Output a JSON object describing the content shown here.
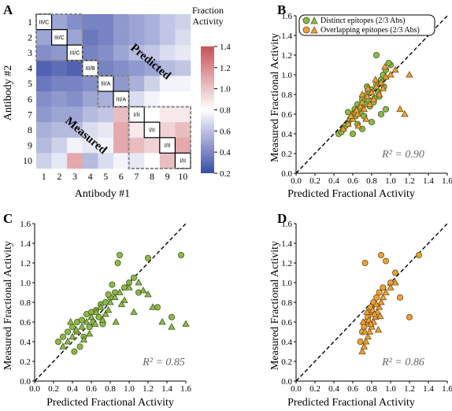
{
  "colors": {
    "green_fill": "#8fb84a",
    "green_stroke": "#3d5a1a",
    "orange_fill": "#e8a23a",
    "orange_stroke": "#7a4a10",
    "cb_low": "#3a4aa8",
    "cb_mid": "#ffffff",
    "cb_high": "#c8505a"
  },
  "panels": {
    "A": {
      "letter": "A",
      "xlabel": "Antibody #1",
      "ylabel": "Antibody #2",
      "ticks": [
        "1",
        "2",
        "3",
        "4",
        "5",
        "6",
        "7",
        "8",
        "9",
        "10"
      ],
      "colorbar_title_1": "Fraction",
      "colorbar_title_2": "Activity",
      "colorbar_ticks": [
        "1.4",
        "1.2",
        "1.0",
        "0.8",
        "0.6",
        "0.4",
        "0.2"
      ],
      "predicted_label": "Predicted",
      "measured_label": "Measured",
      "cluster_labels": [
        "III/C",
        "III/C",
        "III/C",
        "III/B",
        "III/A",
        "III/A",
        "I/II",
        "I/II",
        "I/II",
        "I/II"
      ]
    },
    "B": {
      "letter": "B",
      "xlabel": "Predicted Fractional Activity",
      "ylabel": "Measured Fractional Activity",
      "r2_text": "R² = 0.90",
      "legend": [
        "Distinct epitopes (2/3 Abs)",
        "Overlapping epitopes (2/3 Abs)"
      ]
    },
    "C": {
      "letter": "C",
      "xlabel": "Predicted Fractional Activity",
      "ylabel": "Measured Fractional Activity",
      "r2_text": "R² = 0.85"
    },
    "D": {
      "letter": "D",
      "xlabel": "Predicted Fractional Activity",
      "ylabel": "Measured Fractional Activity",
      "r2_text": "R² = 0.86"
    },
    "axis_ticks": [
      "0.0",
      "0.2",
      "0.4",
      "0.6",
      "0.8",
      "1.0",
      "1.2",
      "1.4",
      "1.6"
    ]
  },
  "chart_data": [
    {
      "type": "heatmap",
      "panel": "A",
      "xlabel": "Antibody #1",
      "ylabel": "Antibody #2",
      "colorbar_range": [
        0.2,
        1.4
      ],
      "values": [
        [
          1.0,
          0.6,
          0.5,
          0.45,
          0.45,
          0.55,
          0.6,
          0.65,
          0.75,
          0.8
        ],
        [
          0.6,
          1.0,
          0.6,
          0.4,
          0.45,
          0.55,
          0.6,
          0.65,
          0.75,
          0.85
        ],
        [
          0.5,
          0.55,
          1.0,
          0.45,
          0.5,
          0.6,
          0.7,
          0.75,
          0.85,
          0.9
        ],
        [
          0.3,
          0.35,
          0.3,
          1.0,
          0.45,
          0.5,
          0.55,
          0.6,
          0.7,
          0.75
        ],
        [
          0.4,
          0.45,
          0.45,
          0.5,
          1.0,
          0.55,
          0.65,
          0.8,
          0.95,
          0.95
        ],
        [
          0.5,
          0.55,
          0.5,
          0.6,
          0.65,
          1.0,
          0.85,
          0.95,
          1.0,
          1.0
        ],
        [
          0.55,
          0.6,
          0.6,
          0.7,
          0.75,
          1.15,
          1.0,
          1.0,
          1.05,
          1.05
        ],
        [
          0.65,
          0.7,
          0.7,
          0.85,
          0.9,
          1.2,
          1.05,
          1.0,
          1.1,
          1.15
        ],
        [
          0.7,
          0.8,
          0.95,
          0.9,
          0.95,
          1.2,
          1.15,
          1.1,
          1.0,
          1.2
        ],
        [
          0.8,
          0.9,
          1.2,
          0.7,
          0.85,
          0.95,
          0.9,
          1.0,
          1.15,
          1.0
        ]
      ]
    },
    {
      "type": "scatter",
      "panel": "B",
      "xlim": [
        0,
        1.6
      ],
      "ylim": [
        0,
        1.6
      ],
      "series": [
        {
          "name": "Distinct epitopes (2/3 Abs)",
          "marker": "circle",
          "color": "#8fb84a",
          "x": [
            0.45,
            0.5,
            0.55,
            0.58,
            0.6,
            0.62,
            0.65,
            0.68,
            0.7,
            0.72,
            0.75,
            0.78,
            0.8,
            0.82,
            0.85,
            0.88,
            0.9,
            0.92,
            0.95,
            1.0,
            0.48,
            0.52,
            0.57,
            0.63,
            0.67,
            0.73,
            0.77,
            0.83,
            0.87,
            0.93,
            0.98,
            0.6,
            0.7,
            0.8,
            0.9,
            0.55,
            0.65,
            0.75,
            0.85,
            0.95
          ],
          "y": [
            0.4,
            0.45,
            0.5,
            0.55,
            0.6,
            0.65,
            0.7,
            0.62,
            0.75,
            0.58,
            0.8,
            0.68,
            0.85,
            0.72,
            0.9,
            0.78,
            0.95,
            1.0,
            1.05,
            1.1,
            0.42,
            0.48,
            0.55,
            0.58,
            0.66,
            0.7,
            0.74,
            0.76,
            0.82,
            0.88,
            1.12,
            0.4,
            0.45,
            0.52,
            0.6,
            0.62,
            0.5,
            0.88,
            1.2,
            0.65
          ]
        },
        {
          "name": "Overlapping epitopes (2/3 Abs)",
          "marker": "triangle",
          "color": "#e8a23a",
          "x": [
            0.5,
            0.55,
            0.6,
            0.62,
            0.65,
            0.68,
            0.7,
            0.72,
            0.75,
            0.78,
            0.8,
            0.82,
            0.85,
            0.88,
            0.9,
            0.92,
            0.95,
            1.0,
            1.05,
            1.1,
            1.15,
            1.2,
            0.58,
            0.64,
            0.7,
            0.76,
            0.84,
            0.94,
            0.66,
            0.74
          ],
          "y": [
            0.45,
            0.5,
            0.55,
            0.62,
            0.6,
            0.68,
            0.72,
            0.65,
            0.78,
            0.7,
            0.82,
            0.75,
            0.88,
            0.8,
            0.92,
            0.86,
            0.98,
            1.0,
            1.05,
            0.65,
            0.6,
            1.0,
            0.58,
            0.64,
            0.8,
            0.86,
            0.95,
            1.08,
            0.48,
            0.55
          ]
        }
      ]
    },
    {
      "type": "scatter",
      "panel": "C",
      "xlim": [
        0,
        1.6
      ],
      "ylim": [
        0,
        1.6
      ],
      "series": [
        {
          "name": "Distinct epitopes",
          "marker": "circle",
          "color": "#8fb84a",
          "x": [
            0.25,
            0.3,
            0.35,
            0.4,
            0.45,
            0.5,
            0.55,
            0.6,
            0.65,
            0.7,
            0.75,
            0.8,
            0.85,
            0.9,
            0.95,
            1.0,
            1.05,
            1.1,
            1.2,
            1.3,
            1.45,
            1.55,
            0.42,
            0.48,
            0.52,
            0.58,
            0.62,
            0.68,
            0.72,
            0.78,
            0.82,
            0.88
          ],
          "y": [
            0.4,
            0.45,
            0.5,
            0.55,
            0.6,
            0.62,
            0.68,
            0.7,
            0.72,
            0.78,
            0.8,
            0.85,
            0.9,
            1.28,
            0.95,
            1.0,
            1.05,
            0.9,
            1.25,
            0.75,
            0.65,
            1.28,
            0.3,
            0.35,
            0.45,
            0.55,
            0.6,
            0.65,
            0.58,
            0.88,
            0.98,
            1.2
          ]
        },
        {
          "name": "Overlapping epitopes",
          "marker": "triangle",
          "color": "#8fb84a",
          "x": [
            0.3,
            0.35,
            0.4,
            0.45,
            0.5,
            0.55,
            0.6,
            0.65,
            0.7,
            0.75,
            0.8,
            0.85,
            0.9,
            0.95,
            1.0,
            1.05,
            1.1,
            1.15,
            1.2,
            1.25,
            1.35,
            1.45,
            1.6,
            0.38,
            0.44,
            0.52,
            0.58,
            0.64,
            0.72,
            0.78,
            0.86,
            0.92
          ],
          "y": [
            0.35,
            0.4,
            0.45,
            0.5,
            0.55,
            0.6,
            0.65,
            0.7,
            0.75,
            0.68,
            0.8,
            0.85,
            0.9,
            0.82,
            0.95,
            0.7,
            1.0,
            0.92,
            0.88,
            0.75,
            0.6,
            0.55,
            0.58,
            0.6,
            0.52,
            0.42,
            0.48,
            0.58,
            0.62,
            0.72,
            0.6,
            0.78
          ]
        }
      ]
    },
    {
      "type": "scatter",
      "panel": "D",
      "xlim": [
        0,
        1.6
      ],
      "ylim": [
        0,
        1.6
      ],
      "series": [
        {
          "name": "Distinct epitopes",
          "marker": "circle",
          "color": "#e8a23a",
          "x": [
            0.68,
            0.7,
            0.72,
            0.74,
            0.76,
            0.78,
            0.8,
            0.82,
            0.85,
            0.88,
            0.9,
            0.92,
            0.95,
            1.0,
            1.05,
            1.1,
            1.2,
            1.3,
            0.73,
            0.79
          ],
          "y": [
            0.4,
            0.5,
            0.55,
            0.6,
            0.65,
            0.7,
            0.75,
            0.8,
            0.85,
            0.9,
            1.28,
            0.95,
            1.22,
            1.0,
            1.1,
            0.85,
            0.65,
            1.28,
            1.2,
            0.75
          ]
        },
        {
          "name": "Overlapping epitopes",
          "marker": "triangle",
          "color": "#e8a23a",
          "x": [
            0.7,
            0.72,
            0.74,
            0.76,
            0.78,
            0.8,
            0.82,
            0.84,
            0.86,
            0.88,
            0.9,
            0.92,
            0.95,
            1.0,
            1.05,
            0.71,
            0.73,
            0.75,
            0.77,
            0.79,
            0.81,
            0.83,
            0.85,
            0.87,
            0.89
          ],
          "y": [
            0.3,
            0.35,
            0.4,
            0.45,
            0.5,
            0.55,
            0.6,
            0.65,
            0.7,
            0.75,
            0.8,
            0.85,
            0.9,
            0.95,
            1.0,
            0.6,
            0.5,
            0.7,
            0.62,
            0.58,
            0.72,
            0.68,
            0.78,
            0.52,
            0.66
          ]
        }
      ]
    }
  ]
}
